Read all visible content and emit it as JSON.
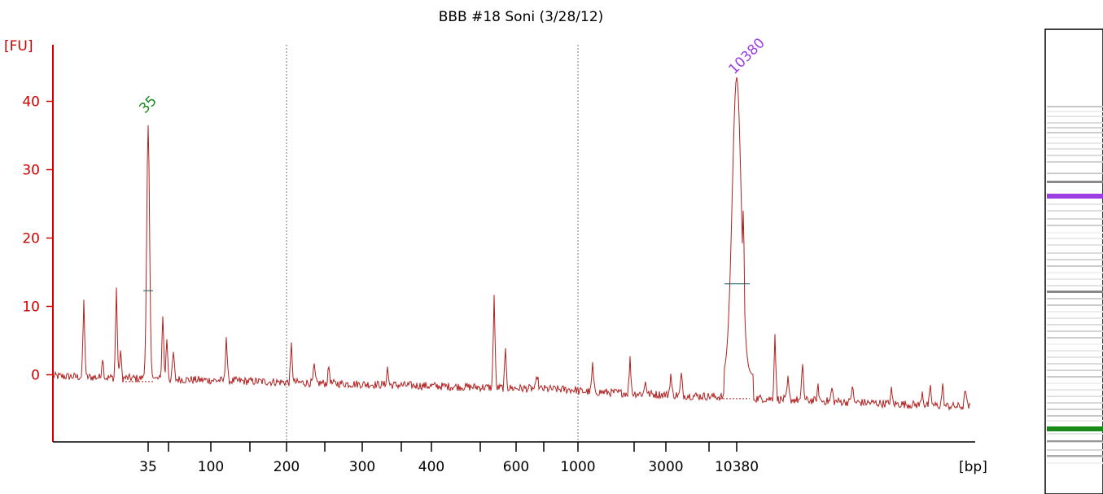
{
  "chart_data": {
    "type": "line",
    "title": "BBB #18 Soni (3/28/12)",
    "ylabel": "[FU]",
    "xlabel": "[bp]",
    "ylim": [
      -10,
      48
    ],
    "y_ticks": [
      0,
      10,
      20,
      30,
      40
    ],
    "x_tick_labels": [
      "35",
      "100",
      "200",
      "300",
      "400",
      "600",
      "1000",
      "3000",
      "10380"
    ],
    "grid": "dotted lines at 200 and 1000",
    "colors": {
      "axis": "#d00000",
      "trace": "#b02020",
      "peak_35": "#1a8a1a",
      "peak_10380": "#9b3fe0",
      "lane_band_purple": "#9b3fe0",
      "lane_band_green": "#1a8a1a"
    },
    "peaks": [
      {
        "label": "35",
        "fu": 37,
        "color": "green"
      },
      {
        "label": "10380",
        "fu": 43.5,
        "color": "purple"
      }
    ],
    "series": [
      {
        "values": [
          [
            35,
            37
          ],
          [
            10380,
            43.5
          ]
        ]
      }
    ]
  }
}
